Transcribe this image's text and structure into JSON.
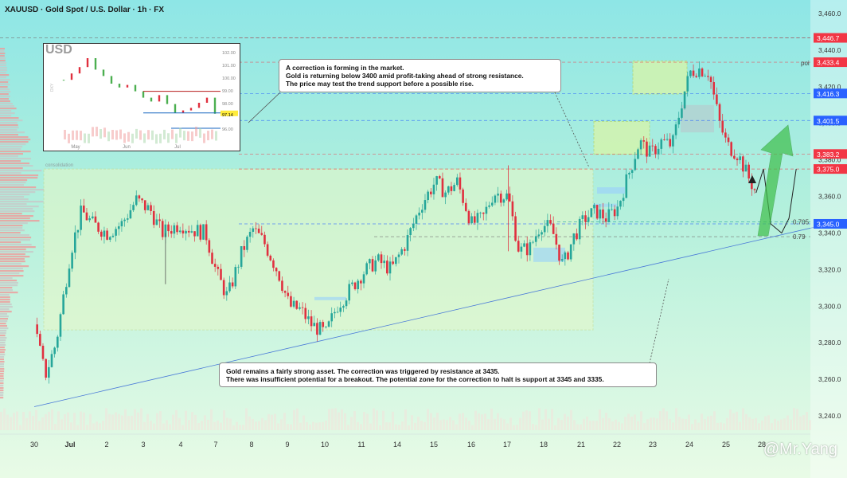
{
  "title": "XAUUSD · Gold Spot / U.S. Dollar · 1h · FX",
  "chart_data": {
    "type": "candlestick",
    "symbol": "XAUUSD",
    "timeframe": "1h",
    "ylim": [
      3230,
      3470
    ],
    "y_ticks": [
      "3,460.0",
      "3,440.0",
      "3,420.0",
      "3,400.0",
      "3,380.0",
      "3,360.0",
      "3,340.0",
      "3,320.0",
      "3,300.0",
      "3,280.0",
      "3,260.0",
      "3,240.0"
    ],
    "y_tick_values": [
      3460,
      3440,
      3420,
      3400,
      3380,
      3360,
      3340,
      3320,
      3300,
      3280,
      3260,
      3240
    ],
    "x_ticks": [
      "30",
      "Jul",
      "2",
      "3",
      "4",
      "7",
      "8",
      "9",
      "10",
      "11",
      "14",
      "15",
      "16",
      "17",
      "18",
      "21",
      "22",
      "23",
      "24",
      "25",
      "28"
    ],
    "close_path": [
      {
        "day": 0.0,
        "price": 3290
      },
      {
        "day": 0.3,
        "price": 3262
      },
      {
        "day": 0.6,
        "price": 3280
      },
      {
        "day": 1.0,
        "price": 3330
      },
      {
        "day": 1.3,
        "price": 3352
      },
      {
        "day": 1.6,
        "price": 3345
      },
      {
        "day": 2.0,
        "price": 3340
      },
      {
        "day": 2.4,
        "price": 3345
      },
      {
        "day": 2.8,
        "price": 3358
      },
      {
        "day": 3.2,
        "price": 3352
      },
      {
        "day": 3.5,
        "price": 3340
      },
      {
        "day": 4.0,
        "price": 3345
      },
      {
        "day": 4.3,
        "price": 3342
      },
      {
        "day": 4.7,
        "price": 3340
      },
      {
        "day": 5.0,
        "price": 3318
      },
      {
        "day": 5.3,
        "price": 3305
      },
      {
        "day": 5.7,
        "price": 3330
      },
      {
        "day": 6.0,
        "price": 3342
      },
      {
        "day": 6.3,
        "price": 3335
      },
      {
        "day": 6.7,
        "price": 3318
      },
      {
        "day": 7.0,
        "price": 3300
      },
      {
        "day": 7.3,
        "price": 3298
      },
      {
        "day": 7.6,
        "price": 3290
      },
      {
        "day": 8.0,
        "price": 3285
      },
      {
        "day": 8.3,
        "price": 3300
      },
      {
        "day": 8.7,
        "price": 3310
      },
      {
        "day": 9.0,
        "price": 3318
      },
      {
        "day": 9.4,
        "price": 3325
      },
      {
        "day": 9.8,
        "price": 3320
      },
      {
        "day": 10.2,
        "price": 3335
      },
      {
        "day": 10.6,
        "price": 3355
      },
      {
        "day": 11.0,
        "price": 3368
      },
      {
        "day": 11.3,
        "price": 3362
      },
      {
        "day": 11.6,
        "price": 3368
      },
      {
        "day": 12.0,
        "price": 3345
      },
      {
        "day": 12.3,
        "price": 3348
      },
      {
        "day": 12.6,
        "price": 3362
      },
      {
        "day": 13.0,
        "price": 3360
      },
      {
        "day": 13.3,
        "price": 3330
      },
      {
        "day": 13.6,
        "price": 3332
      },
      {
        "day": 13.9,
        "price": 3345
      },
      {
        "day": 14.2,
        "price": 3342
      },
      {
        "day": 14.5,
        "price": 3322
      },
      {
        "day": 14.8,
        "price": 3338
      },
      {
        "day": 15.1,
        "price": 3348
      },
      {
        "day": 15.4,
        "price": 3352
      },
      {
        "day": 15.7,
        "price": 3348
      },
      {
        "day": 16.0,
        "price": 3354
      },
      {
        "day": 16.3,
        "price": 3372
      },
      {
        "day": 16.6,
        "price": 3390
      },
      {
        "day": 16.9,
        "price": 3383
      },
      {
        "day": 17.2,
        "price": 3390
      },
      {
        "day": 17.5,
        "price": 3388
      },
      {
        "day": 17.8,
        "price": 3415
      },
      {
        "day": 18.0,
        "price": 3428
      },
      {
        "day": 18.2,
        "price": 3430
      },
      {
        "day": 18.5,
        "price": 3428
      },
      {
        "day": 18.8,
        "price": 3400
      },
      {
        "day": 19.0,
        "price": 3388
      },
      {
        "day": 19.3,
        "price": 3383
      },
      {
        "day": 19.6,
        "price": 3370
      },
      {
        "day": 19.8,
        "price": 3362
      }
    ],
    "support_trendline": [
      {
        "day": 0.0,
        "price": 3245
      },
      {
        "day": 21.8,
        "price": 3345
      }
    ],
    "levels": [
      {
        "label": "3,446.7",
        "price": 3446.7,
        "color": "#f23645"
      },
      {
        "label": "3,433.4",
        "price": 3433.4,
        "color": "#f23645"
      },
      {
        "label": "3,416.3",
        "price": 3416.3,
        "color": "#2962ff"
      },
      {
        "label": "3,401.5",
        "price": 3401.5,
        "color": "#2962ff"
      },
      {
        "label": "3,383.2",
        "price": 3383.2,
        "color": "#f23645"
      },
      {
        "label": "3,375.0",
        "price": 3375.0,
        "color": "#f23645"
      },
      {
        "label": "3,345.0",
        "price": 3345.0,
        "color": "#2962ff"
      }
    ],
    "fib_labels": [
      {
        "label": "0.705",
        "price": 3346
      },
      {
        "label": "0.79",
        "price": 3338
      }
    ],
    "poi_label": "poi",
    "range_label": "consolidation",
    "projection": [
      {
        "day": 19.8,
        "price": 3362
      },
      {
        "day": 20.0,
        "price": 3375
      },
      {
        "day": 20.2,
        "price": 3345
      },
      {
        "day": 20.5,
        "price": 3340
      },
      {
        "day": 20.7,
        "price": 3348
      },
      {
        "day": 20.9,
        "price": 3375
      }
    ],
    "colors": {
      "up": "#26a69a",
      "down": "#e0303f",
      "accent_green": "#4caf50",
      "blue": "#2962ff"
    }
  },
  "annotations": {
    "top": [
      "A correction is forming in the market.",
      "Gold is returning below 3400 amid profit-taking ahead of strong resistance.",
      "The price may test the trend support before a possible rise."
    ],
    "bottom": [
      "Gold remains a fairly strong asset. The correction was triggered by resistance at 3435.",
      "There was insufficient potential for a breakout. The potential zone for the correction to halt is support at 3345 and 3335."
    ]
  },
  "inset": {
    "label": "USD",
    "y_ticks": [
      "102.00",
      "101.00",
      "100.00",
      "99.00",
      "98.00",
      "97.14",
      "96.00"
    ],
    "x_ticks": [
      "May",
      "Jun",
      "Jul"
    ],
    "side_label": "DXY"
  },
  "watermark": "@Mr.Yang"
}
